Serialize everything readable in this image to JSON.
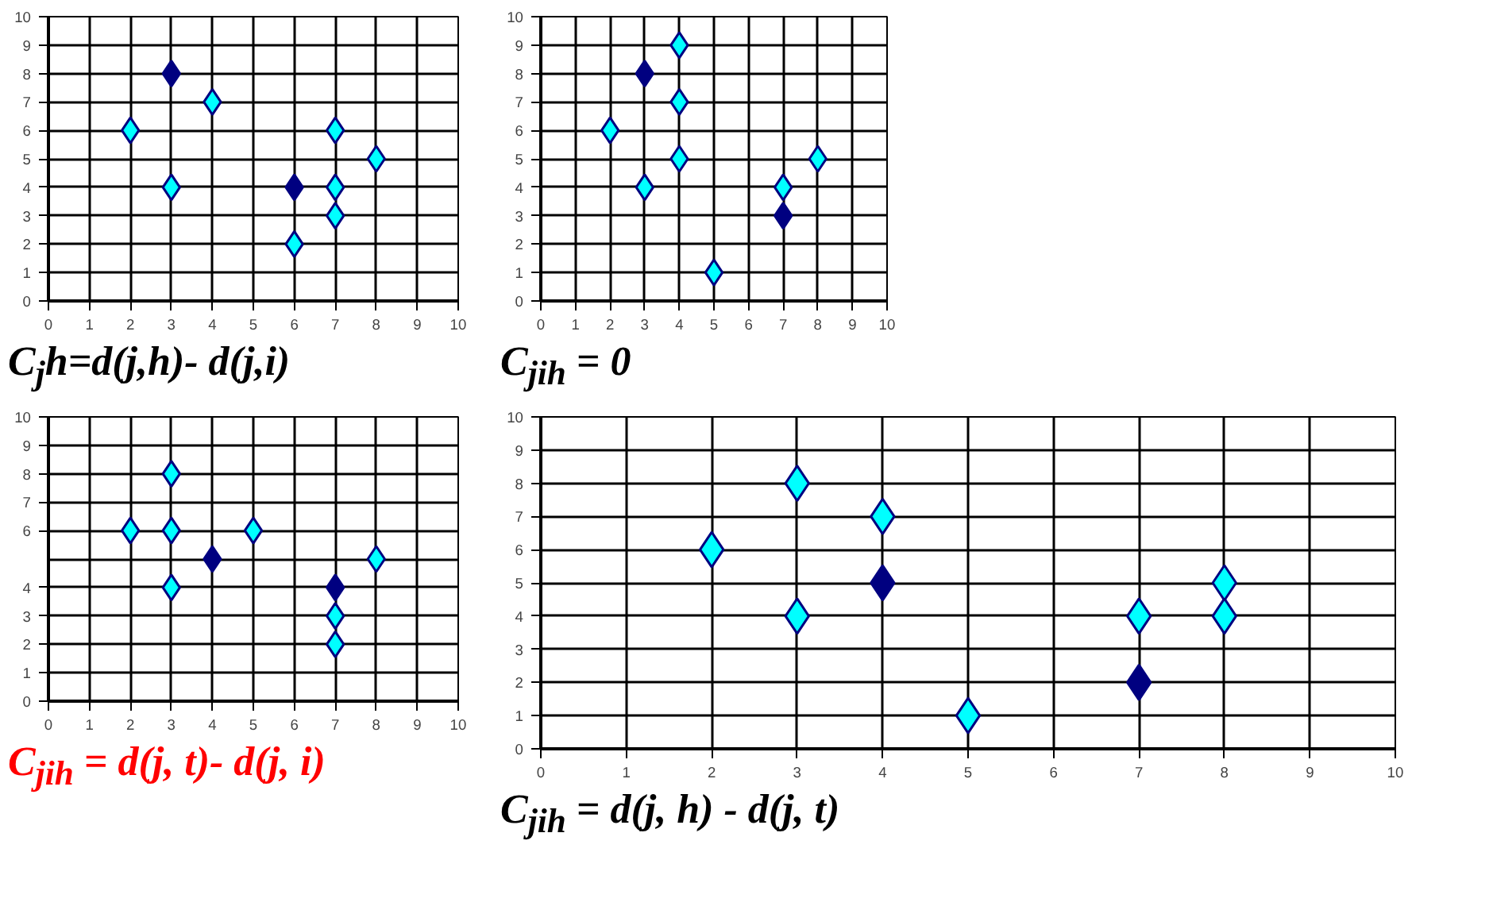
{
  "chart_data": [
    {
      "type": "scatter",
      "title": "C$_{j}$h=d(j,h)- d(j,i)",
      "marker": "diamond",
      "grid": true,
      "xlim": [
        0,
        10
      ],
      "ylim": [
        0,
        10
      ],
      "xticks": [
        0,
        1,
        2,
        3,
        4,
        5,
        6,
        7,
        8,
        9,
        10
      ],
      "yticks": [
        0,
        1,
        2,
        3,
        4,
        5,
        6,
        7,
        8,
        9,
        10
      ],
      "series": [
        {
          "color": "#00ffff",
          "x": [
            2,
            3,
            4,
            7,
            8,
            7,
            7,
            6
          ],
          "values": [
            6,
            4,
            7,
            6,
            5,
            4,
            3,
            2
          ]
        },
        {
          "color": "#000080",
          "x": [
            3,
            6
          ],
          "values": [
            8,
            4
          ]
        }
      ]
    },
    {
      "type": "scatter",
      "title": "C$_{jih}$ = 0",
      "marker": "diamond",
      "grid": true,
      "xlim": [
        0,
        10
      ],
      "ylim": [
        0,
        10
      ],
      "xticks": [
        0,
        1,
        2,
        3,
        4,
        5,
        6,
        7,
        8,
        9,
        10
      ],
      "yticks": [
        0,
        1,
        2,
        3,
        4,
        5,
        6,
        7,
        8,
        9,
        10
      ],
      "series": [
        {
          "color": "#00ffff",
          "x": [
            4,
            2,
            4,
            4,
            3,
            5,
            7,
            8
          ],
          "values": [
            9,
            6,
            7,
            5,
            4,
            1,
            4,
            5
          ]
        },
        {
          "color": "#000080",
          "x": [
            3,
            7
          ],
          "values": [
            8,
            3
          ]
        }
      ]
    },
    {
      "type": "scatter",
      "title": "C$_{jih}$ = d(j, t)- d(j, i)",
      "marker": "diamond",
      "grid": true,
      "xlim": [
        0,
        10
      ],
      "ylim": [
        0,
        10
      ],
      "xticks": [
        0,
        1,
        2,
        3,
        4,
        5,
        6,
        7,
        8,
        9,
        10
      ],
      "yticks": [
        0,
        1,
        2,
        3,
        4,
        6,
        7,
        8,
        9,
        10
      ],
      "series": [
        {
          "color": "#00ffff",
          "x": [
            3,
            2,
            3,
            5,
            3,
            8,
            7,
            7
          ],
          "values": [
            8,
            6,
            6,
            6,
            4,
            5,
            3,
            2
          ]
        },
        {
          "color": "#000080",
          "x": [
            4,
            7
          ],
          "values": [
            5,
            4
          ]
        }
      ]
    },
    {
      "type": "scatter",
      "title": "C$_{jih}$ = d(j, h) - d(j, t)",
      "marker": "diamond",
      "grid": true,
      "xlim": [
        0,
        10
      ],
      "ylim": [
        0,
        10
      ],
      "xticks": [
        0,
        1,
        2,
        3,
        4,
        5,
        6,
        7,
        8,
        9,
        10
      ],
      "yticks": [
        0,
        1,
        2,
        3,
        4,
        5,
        6,
        7,
        8,
        9,
        10
      ],
      "series": [
        {
          "color": "#00ffff",
          "x": [
            3,
            4,
            2,
            3,
            5,
            7,
            8,
            8
          ],
          "values": [
            8,
            7,
            6,
            4,
            1,
            4,
            5,
            4
          ]
        },
        {
          "color": "#000080",
          "x": [
            4,
            7
          ],
          "values": [
            5,
            2
          ]
        }
      ]
    }
  ]
}
